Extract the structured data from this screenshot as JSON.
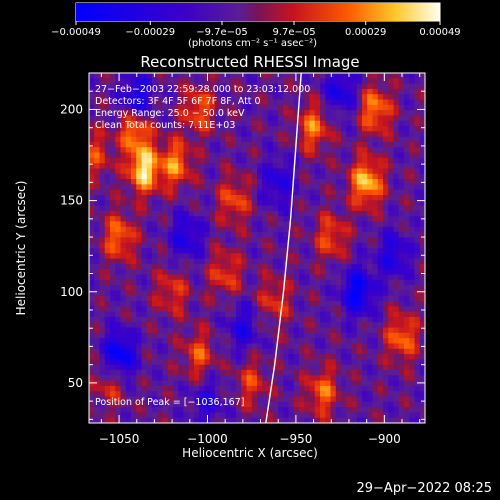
{
  "chart_data": {
    "type": "heatmap",
    "title": "Reconstructed RHESSI Image",
    "xlabel": "Heliocentric X (arcsec)",
    "ylabel": "Heliocentric Y (arcsec)",
    "xlim": [
      -1067,
      -877
    ],
    "ylim": [
      28,
      220
    ],
    "x_ticks": [
      -1050,
      -1000,
      -950,
      -900
    ],
    "x_tick_labels": [
      "−1050",
      "−1000",
      "−950",
      "−900"
    ],
    "y_ticks": [
      50,
      100,
      150,
      200
    ],
    "y_tick_labels": [
      "50",
      "100",
      "150",
      "200"
    ],
    "colorbar": {
      "range": [
        -0.00049,
        0.00049
      ],
      "tick_values": [
        -0.00049,
        -0.00029,
        -9.7e-05,
        9.7e-05,
        0.00029,
        0.00049
      ],
      "tick_labels": [
        "−0.00049",
        "−0.00029",
        "−9.7e−05",
        "9.7e−05",
        "0.00029",
        "0.00049"
      ],
      "units": "(photons cm⁻² s⁻¹ asec⁻²)",
      "colormap": "rhessi-blue-red-yellow"
    },
    "annotations": [
      "27−Feb−2003 22:59:28.000 to 23:03:12.000",
      "Detectors: 3F 4F 5F 6F 7F 8F, Att 0",
      "Energy Range: 25.0 − 50.0 keV",
      "Clean     Total counts: 7.11E+03",
      "Position of Peak = [−1036,167]"
    ],
    "peak": [
      -1036,
      167
    ],
    "total_counts": 7110,
    "energy_range_kev": [
      25.0,
      50.0
    ],
    "limb_curve": {
      "x": [
        -947,
        -950,
        -953,
        -957,
        -962,
        -967
      ],
      "y": [
        220,
        180,
        140,
        100,
        60,
        28
      ]
    },
    "hotspots": [
      {
        "x": -1036,
        "y": 167,
        "value": 0.00049
      },
      {
        "x": -1041,
        "y": 190,
        "value": 0.0004
      },
      {
        "x": -1050,
        "y": 130,
        "value": 0.00032
      },
      {
        "x": -1018,
        "y": 170,
        "value": 0.00034
      },
      {
        "x": -1005,
        "y": 200,
        "value": 0.00028
      },
      {
        "x": -985,
        "y": 150,
        "value": 0.00026
      },
      {
        "x": -990,
        "y": 110,
        "value": 0.00024
      },
      {
        "x": -1020,
        "y": 100,
        "value": 0.00022
      },
      {
        "x": -1005,
        "y": 65,
        "value": 0.00026
      },
      {
        "x": -975,
        "y": 50,
        "value": 0.00022
      },
      {
        "x": -940,
        "y": 190,
        "value": 0.00032
      },
      {
        "x": -910,
        "y": 160,
        "value": 0.00045
      },
      {
        "x": -905,
        "y": 200,
        "value": 0.00035
      },
      {
        "x": -930,
        "y": 130,
        "value": 0.00026
      },
      {
        "x": -890,
        "y": 75,
        "value": 0.00032
      },
      {
        "x": -935,
        "y": 45,
        "value": 0.0003
      },
      {
        "x": -962,
        "y": 95,
        "value": 0.00022
      },
      {
        "x": -1055,
        "y": 50,
        "value": 0.00022
      },
      {
        "x": -1063,
        "y": 175,
        "value": 0.00022
      }
    ],
    "coldspots": [
      {
        "x": -1050,
        "y": 65,
        "value": -0.00045
      },
      {
        "x": -1040,
        "y": 205,
        "value": -0.0004
      },
      {
        "x": -915,
        "y": 100,
        "value": -0.00042
      },
      {
        "x": -925,
        "y": 210,
        "value": -0.0003
      },
      {
        "x": -1012,
        "y": 130,
        "value": -0.00028
      },
      {
        "x": -960,
        "y": 160,
        "value": -0.00026
      },
      {
        "x": -980,
        "y": 80,
        "value": -0.00025
      },
      {
        "x": -895,
        "y": 120,
        "value": -0.00028
      },
      {
        "x": -1000,
        "y": 40,
        "value": -0.00022
      }
    ]
  },
  "timestamp": "29−Apr−2022 08:25"
}
